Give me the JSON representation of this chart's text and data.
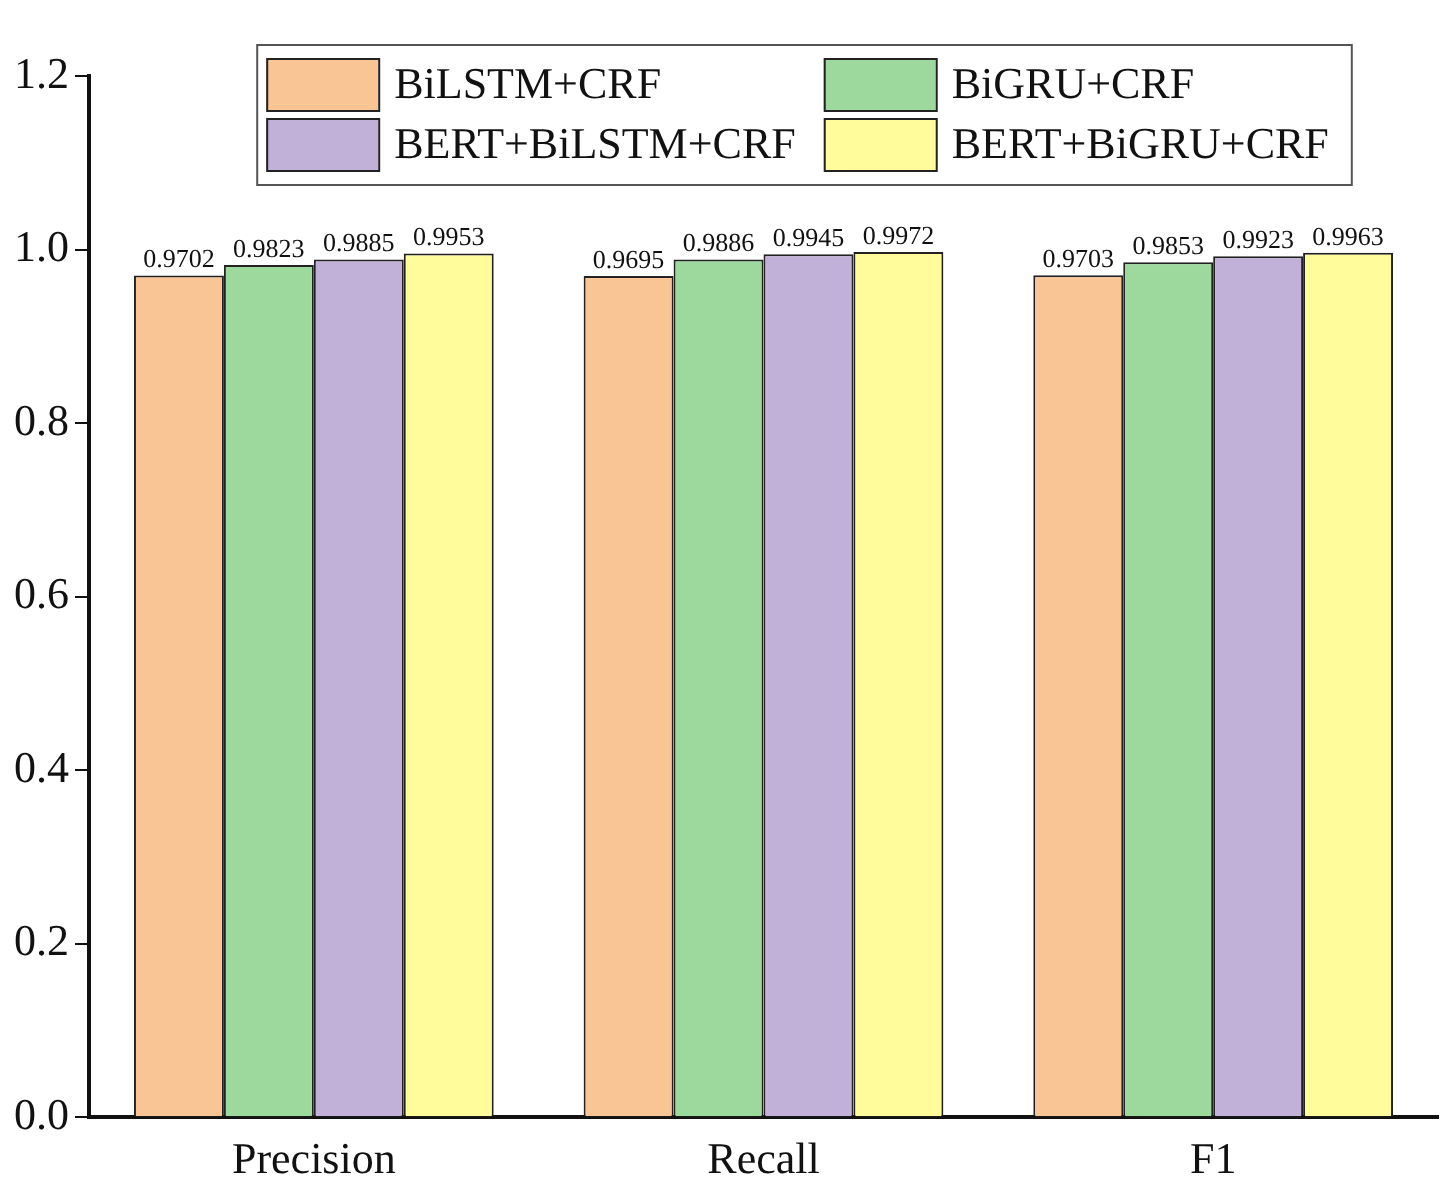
{
  "chart_data": {
    "type": "bar",
    "categories": [
      "Precision",
      "Recall",
      "F1"
    ],
    "series": [
      {
        "name": "BiLSTM+CRF",
        "color": "#f9c594",
        "values": [
          0.9702,
          0.9695,
          0.9703
        ]
      },
      {
        "name": "BiGRU+CRF",
        "color": "#9dd89c",
        "values": [
          0.9823,
          0.9886,
          0.9853
        ]
      },
      {
        "name": "BERT+BiLSTM+CRF",
        "color": "#c1b1d9",
        "values": [
          0.9885,
          0.9945,
          0.9923
        ]
      },
      {
        "name": "BERT+BiGRU+CRF",
        "color": "#fffc9c",
        "values": [
          0.9953,
          0.9972,
          0.9963
        ]
      }
    ],
    "ylim": [
      0,
      1.2
    ],
    "yticks": [
      {
        "value": 0,
        "label": "0.0"
      },
      {
        "value": 0.2,
        "label": "0.2"
      },
      {
        "value": 0.4,
        "label": "0.4"
      },
      {
        "value": 0.6,
        "label": "0.6"
      },
      {
        "value": 0.8,
        "label": "0.8"
      },
      {
        "value": 1,
        "label": "1.0"
      },
      {
        "value": 1.2,
        "label": "1.2"
      }
    ],
    "grid": false,
    "legend": "top",
    "data_labels": true
  }
}
